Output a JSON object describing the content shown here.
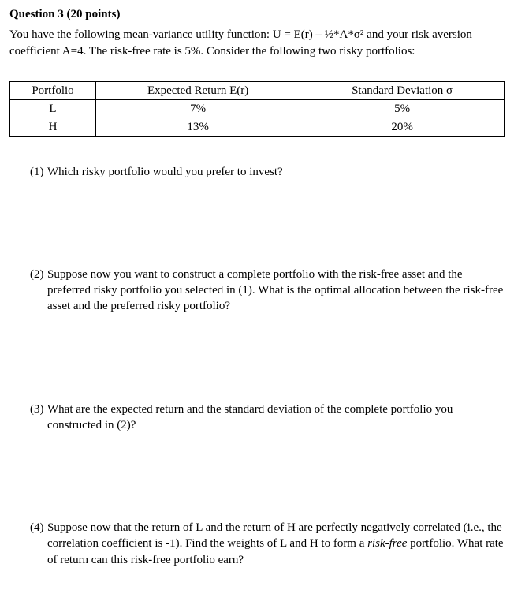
{
  "heading": "Question 3 (20 points)",
  "intro": "You have the following mean-variance utility function: U = E(r) – ½*A*σ² and your risk aversion coefficient A=4. The risk-free rate is 5%. Consider the following two risky portfolios:",
  "table": {
    "headers": [
      "Portfolio",
      "Expected Return E(r)",
      "Standard Deviation σ"
    ],
    "rows": [
      [
        "L",
        "7%",
        "5%"
      ],
      [
        "H",
        "13%",
        "20%"
      ]
    ]
  },
  "questions": {
    "q1": {
      "num": "(1)",
      "text": "Which risky portfolio would you prefer to invest?"
    },
    "q2": {
      "num": "(2)",
      "text": "Suppose now you want to construct a complete portfolio with the risk-free asset and the preferred risky portfolio you selected in (1). What is the optimal allocation between the risk-free asset and the preferred risky portfolio?"
    },
    "q3": {
      "num": "(3)",
      "text": "What are the expected return and the standard deviation of the complete portfolio you constructed in (2)?"
    },
    "q4": {
      "num": "(4)",
      "pre": "Suppose now that the return of L and the return of H are perfectly negatively correlated (i.e., the correlation coefficient is -1). Find the weights of L and H to form a ",
      "ital": "risk-free",
      "post": " portfolio. What rate of return can this risk-free portfolio earn?"
    }
  }
}
